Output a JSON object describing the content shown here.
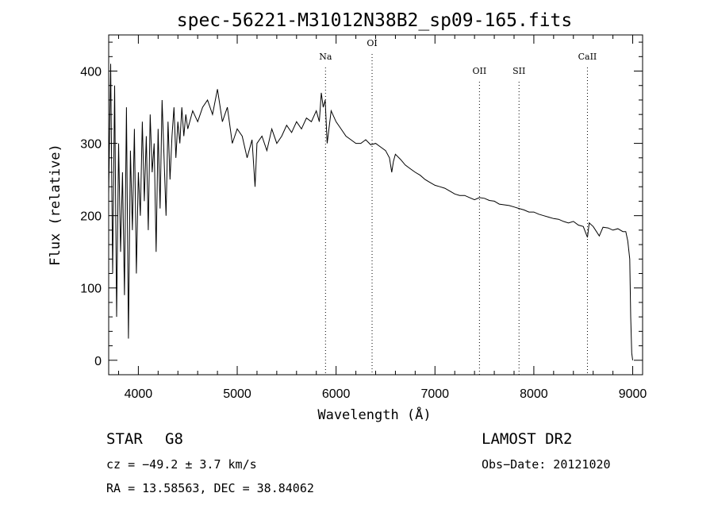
{
  "chart_data": {
    "type": "line",
    "title": "spec-56221-M31012N38B2_sp09-165.fits",
    "xlabel": "Wavelength (Å)",
    "ylabel": "Flux (relative)",
    "xlim": [
      3700,
      9100
    ],
    "ylim": [
      -20,
      450
    ],
    "xticks": [
      4000,
      5000,
      6000,
      7000,
      8000,
      9000
    ],
    "yticks": [
      0,
      100,
      200,
      300,
      400
    ],
    "grid": false,
    "series": [
      {
        "x": [
          3700,
          3720,
          3740,
          3760,
          3780,
          3800,
          3820,
          3840,
          3860,
          3880,
          3900,
          3920,
          3940,
          3960,
          3980,
          4000,
          4020,
          4040,
          4060,
          4080,
          4100,
          4120,
          4140,
          4160,
          4180,
          4200,
          4220,
          4240,
          4260,
          4280,
          4300,
          4320,
          4340,
          4360,
          4380,
          4400,
          4420,
          4440,
          4460,
          4480,
          4500,
          4550,
          4600,
          4650,
          4700,
          4750,
          4800,
          4850,
          4900,
          4950,
          5000,
          5050,
          5100,
          5150,
          5180,
          5200,
          5250,
          5300,
          5350,
          5400,
          5450,
          5500,
          5550,
          5600,
          5650,
          5700,
          5750,
          5800,
          5830,
          5850,
          5870,
          5890,
          5910,
          5950,
          6000,
          6050,
          6100,
          6150,
          6200,
          6250,
          6300,
          6350,
          6400,
          6450,
          6500,
          6540,
          6563,
          6580,
          6600,
          6650,
          6700,
          6750,
          6800,
          6850,
          6900,
          6950,
          7000,
          7050,
          7100,
          7150,
          7200,
          7250,
          7300,
          7350,
          7400,
          7450,
          7500,
          7550,
          7600,
          7650,
          7700,
          7750,
          7800,
          7850,
          7900,
          7950,
          8000,
          8050,
          8100,
          8150,
          8200,
          8250,
          8300,
          8350,
          8400,
          8450,
          8500,
          8542,
          8560,
          8600,
          8662,
          8700,
          8750,
          8800,
          8850,
          8900,
          8930,
          8950,
          8970,
          8980,
          8990,
          9000
        ],
        "y": [
          230,
          410,
          120,
          380,
          60,
          300,
          150,
          260,
          90,
          350,
          30,
          290,
          180,
          320,
          120,
          260,
          200,
          330,
          220,
          310,
          180,
          340,
          260,
          300,
          150,
          320,
          210,
          360,
          280,
          200,
          330,
          250,
          310,
          350,
          280,
          330,
          300,
          350,
          310,
          340,
          320,
          345,
          330,
          350,
          360,
          340,
          375,
          330,
          350,
          300,
          320,
          310,
          280,
          305,
          240,
          300,
          310,
          290,
          320,
          300,
          310,
          325,
          315,
          330,
          320,
          335,
          330,
          345,
          330,
          370,
          350,
          360,
          300,
          345,
          330,
          320,
          310,
          305,
          300,
          300,
          305,
          298,
          300,
          295,
          290,
          280,
          260,
          275,
          285,
          278,
          270,
          265,
          260,
          256,
          250,
          246,
          242,
          240,
          238,
          234,
          230,
          228,
          228,
          225,
          222,
          225,
          224,
          221,
          220,
          216,
          215,
          214,
          212,
          210,
          208,
          205,
          205,
          202,
          200,
          198,
          196,
          195,
          192,
          190,
          192,
          187,
          185,
          170,
          190,
          185,
          172,
          184,
          183,
          180,
          182,
          178,
          178,
          165,
          140,
          60,
          10,
          0
        ]
      }
    ],
    "annotations": [
      {
        "label": "Na",
        "x": 5893
      },
      {
        "label": "OI",
        "x": 6364
      },
      {
        "label": "OII",
        "x": 7450
      },
      {
        "label": "SII",
        "x": 7850
      },
      {
        "label": "CaII",
        "x": 8542
      }
    ]
  },
  "info": {
    "object_class": "STAR",
    "subclass": "G8",
    "survey": "LAMOST DR2",
    "cz": "cz = −49.2 ± 3.7 km/s",
    "obs_date": "Obs−Date: 20121020",
    "radec": "RA =  13.58563, DEC =  38.84062"
  }
}
